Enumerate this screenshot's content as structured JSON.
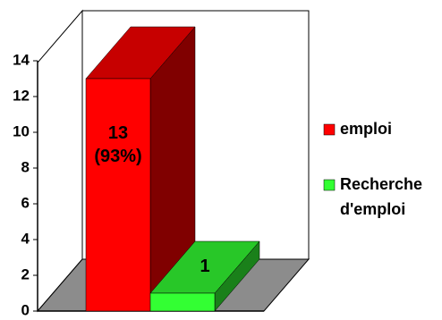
{
  "chart_data": {
    "type": "bar3d",
    "categories": [
      null
    ],
    "series": [
      {
        "name": "emploi",
        "color": "#ff0000",
        "values": [
          13
        ],
        "value_labels": [
          "13 (93%)"
        ]
      },
      {
        "name": "Recherche d'emploi",
        "color": "#33ff33",
        "values": [
          1
        ]
      }
    ],
    "ylim": [
      0,
      14
    ],
    "yticks": [
      0,
      2,
      4,
      6,
      8,
      10,
      12,
      14
    ],
    "legend": "right"
  }
}
